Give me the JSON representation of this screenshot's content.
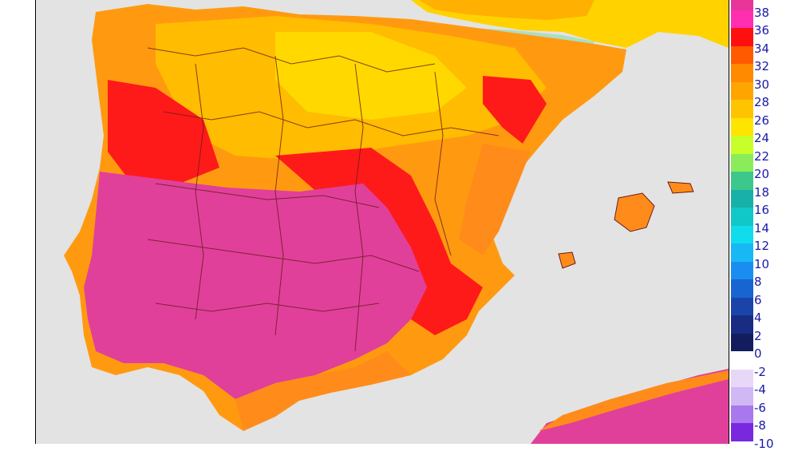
{
  "legend": {
    "bands": [
      {
        "label": "38",
        "color": "#e8359a"
      },
      {
        "label": "36",
        "color": "#ff2fb0"
      },
      {
        "label": "34",
        "color": "#ff1010"
      },
      {
        "label": "32",
        "color": "#ff5a00"
      },
      {
        "label": "30",
        "color": "#ff8a00"
      },
      {
        "label": "28",
        "color": "#ffa500"
      },
      {
        "label": "26",
        "color": "#ffc400"
      },
      {
        "label": "24",
        "color": "#ffe400"
      },
      {
        "label": "22",
        "color": "#c8ff2a"
      },
      {
        "label": "20",
        "color": "#8aec5a"
      },
      {
        "label": "18",
        "color": "#3cc88a"
      },
      {
        "label": "16",
        "color": "#18b0a8"
      },
      {
        "label": "14",
        "color": "#10c8c8"
      },
      {
        "label": "12",
        "color": "#10dcec"
      },
      {
        "label": "10",
        "color": "#18b8f4"
      },
      {
        "label": "8",
        "color": "#1a8ef0"
      },
      {
        "label": "6",
        "color": "#1864d0"
      },
      {
        "label": "4",
        "color": "#1a44a8"
      },
      {
        "label": "2",
        "color": "#182c84"
      },
      {
        "label": "0",
        "color": "#141c60"
      },
      {
        "label": "-2",
        "color": "#ffffff"
      },
      {
        "label": "-4",
        "color": "#e8d8f8"
      },
      {
        "label": "-6",
        "color": "#d0b8f4"
      },
      {
        "label": "-8",
        "color": "#a878ec"
      },
      {
        "label": "-10",
        "color": "#7a28e0"
      }
    ]
  },
  "map": {
    "sea_color": "#e3e3e3",
    "border_color": "#6a1a1a",
    "hot_color": "#e0409a",
    "warm_color": "#ff8c1a",
    "mild_color": "#ffb400",
    "red_color": "#ff1a1a",
    "cool_color": "#ffd800"
  }
}
